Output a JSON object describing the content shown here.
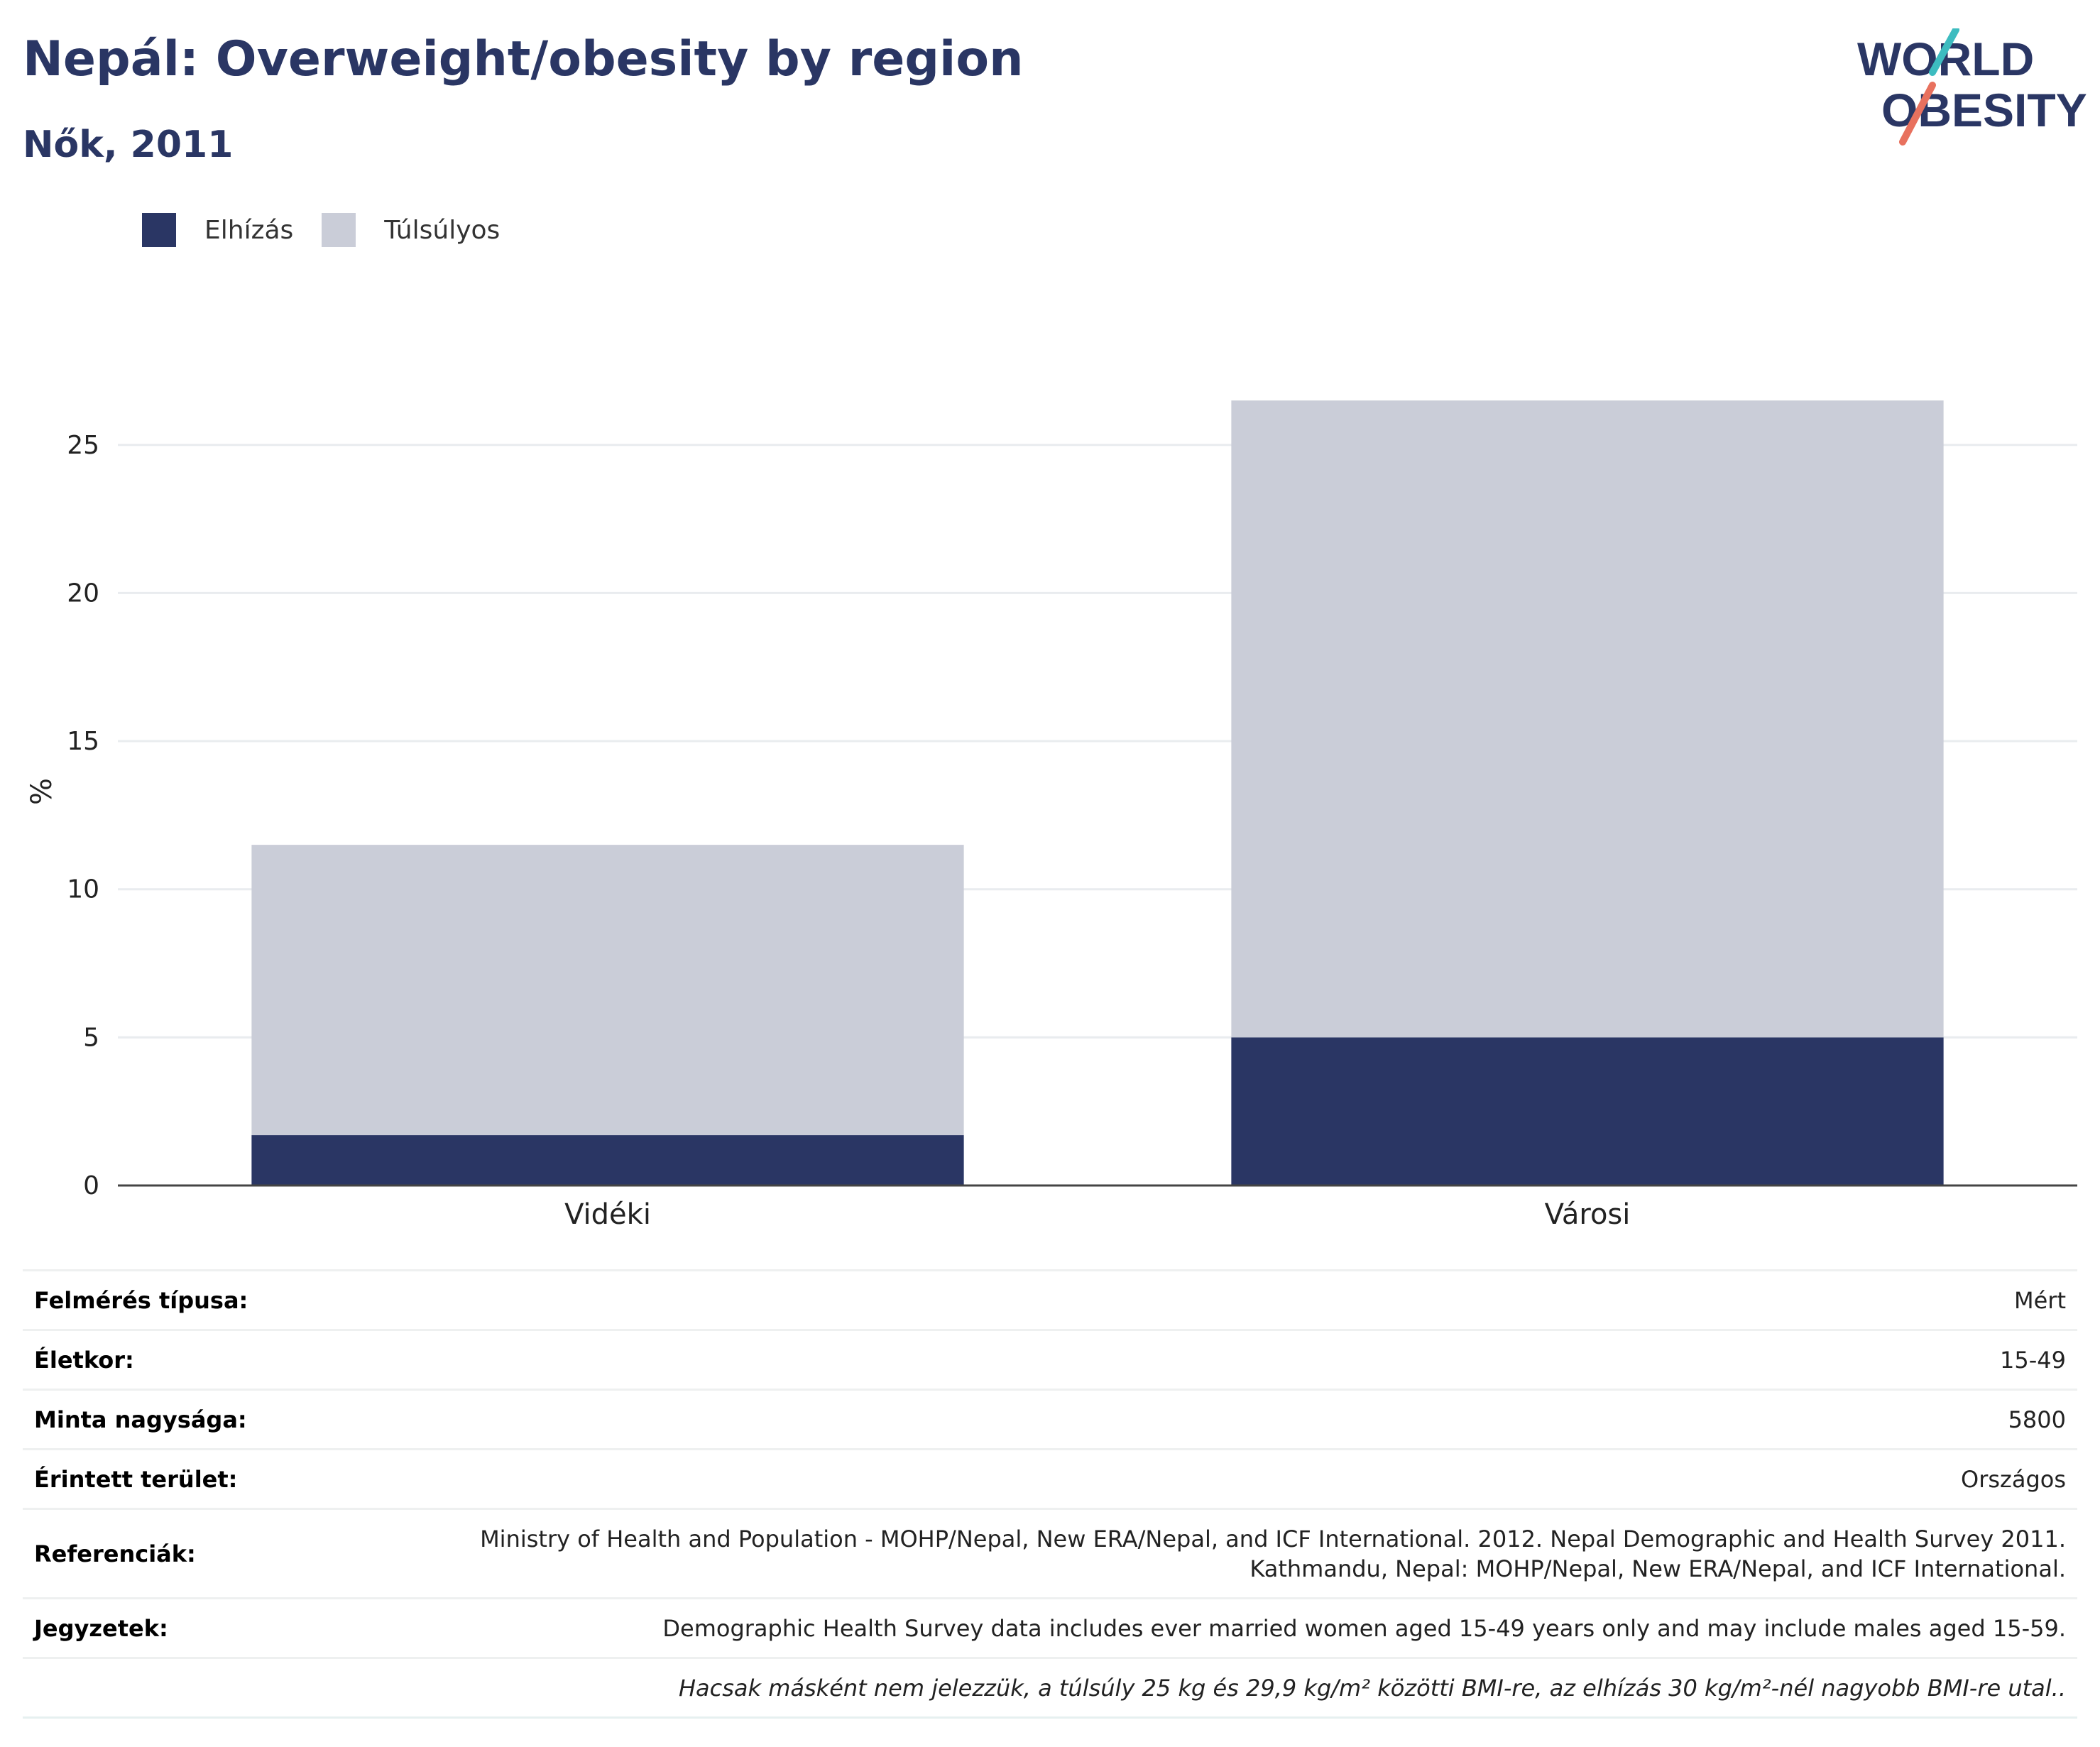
{
  "header": {
    "title": "Nepál: Overweight/obesity by region",
    "subtitle": "Nők, 2011"
  },
  "logo": {
    "line1": "WORLD",
    "line2": "OBESITY"
  },
  "legend": [
    {
      "label": "Elhízás",
      "color": "#2a3664"
    },
    {
      "label": "Túlsúlyos",
      "color": "#cacdd8"
    }
  ],
  "chart_data": {
    "type": "bar",
    "stacked": true,
    "categories": [
      "Vidéki",
      "Városi"
    ],
    "series": [
      {
        "name": "Elhízás",
        "values": [
          1.7,
          5.0
        ],
        "color": "#2a3664"
      },
      {
        "name": "Túlsúlyos",
        "values": [
          9.8,
          21.5
        ],
        "color": "#cacdd8"
      }
    ],
    "ylabel": "%",
    "ylim": [
      0,
      26.6
    ],
    "yticks": [
      0,
      5,
      10,
      15,
      20,
      25
    ],
    "grid": true,
    "legend_position": "top-left"
  },
  "meta": [
    {
      "key": "Felmérés típusa:",
      "value": "Mért"
    },
    {
      "key": "Életkor:",
      "value": "15-49"
    },
    {
      "key": "Minta nagysága:",
      "value": "5800"
    },
    {
      "key": "Érintett terület:",
      "value": "Országos"
    },
    {
      "key": "Referenciák:",
      "value": "Ministry of Health and Population - MOHP/Nepal, New ERA/Nepal, and ICF International. 2012. Nepal Demographic and Health Survey 2011. Kathmandu, Nepal: MOHP/Nepal, New ERA/Nepal, and ICF International."
    },
    {
      "key": "Jegyzetek:",
      "value": "Demographic Health Survey data includes ever married women aged 15-49 years only and may include males aged 15-59."
    },
    {
      "key": "",
      "value": "Hacsak másként nem jelezzük, a túlsúly 25 kg és 29,9 kg/m² közötti BMI-re, az elhízás 30 kg/m²-nél nagyobb BMI-re utal.."
    }
  ]
}
